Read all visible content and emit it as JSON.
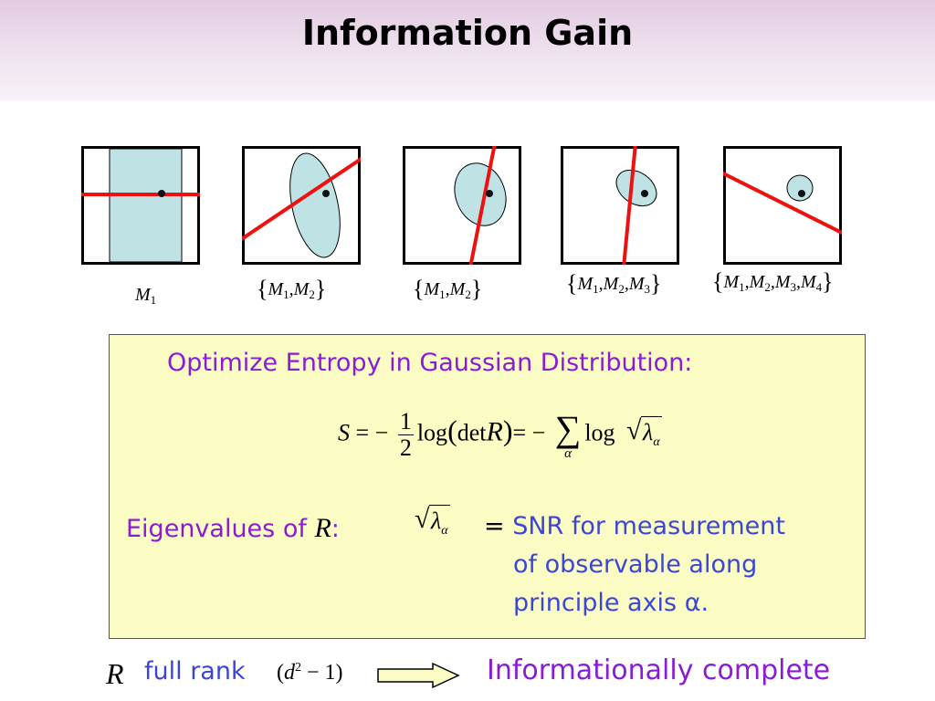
{
  "slide": {
    "title": "Information Gain"
  },
  "panels": [
    {
      "caption_items": [
        "M1"
      ],
      "braced": false
    },
    {
      "caption_items": [
        "M1",
        "M2"
      ],
      "braced": true
    },
    {
      "caption_items": [
        "M1",
        "M2"
      ],
      "braced": true
    },
    {
      "caption_items": [
        "M1",
        "M2",
        "M3"
      ],
      "braced": true
    },
    {
      "caption_items": [
        "M1",
        "M2",
        "M3",
        "M4"
      ],
      "braced": true
    }
  ],
  "box": {
    "heading": "Optimize Entropy in Gaussian Distribution:",
    "eigen_label": "Eigenvalues of",
    "eigen_symbol": "R",
    "eigen_colon": ":",
    "snr_eq": "=",
    "snr_line1": "SNR for measurement",
    "snr_line2": "of observable along",
    "snr_line3": "principle axis α."
  },
  "bottom": {
    "r_symbol": "R",
    "full_rank": "full rank",
    "informationally_complete": "Informationally complete"
  },
  "colors": {
    "purple": "#8a1bd6",
    "blue": "#3b46d6",
    "ellipse_fill": "#bfe3e5",
    "red_line": "#ee1111",
    "box_fill": "#fbfbc4"
  }
}
